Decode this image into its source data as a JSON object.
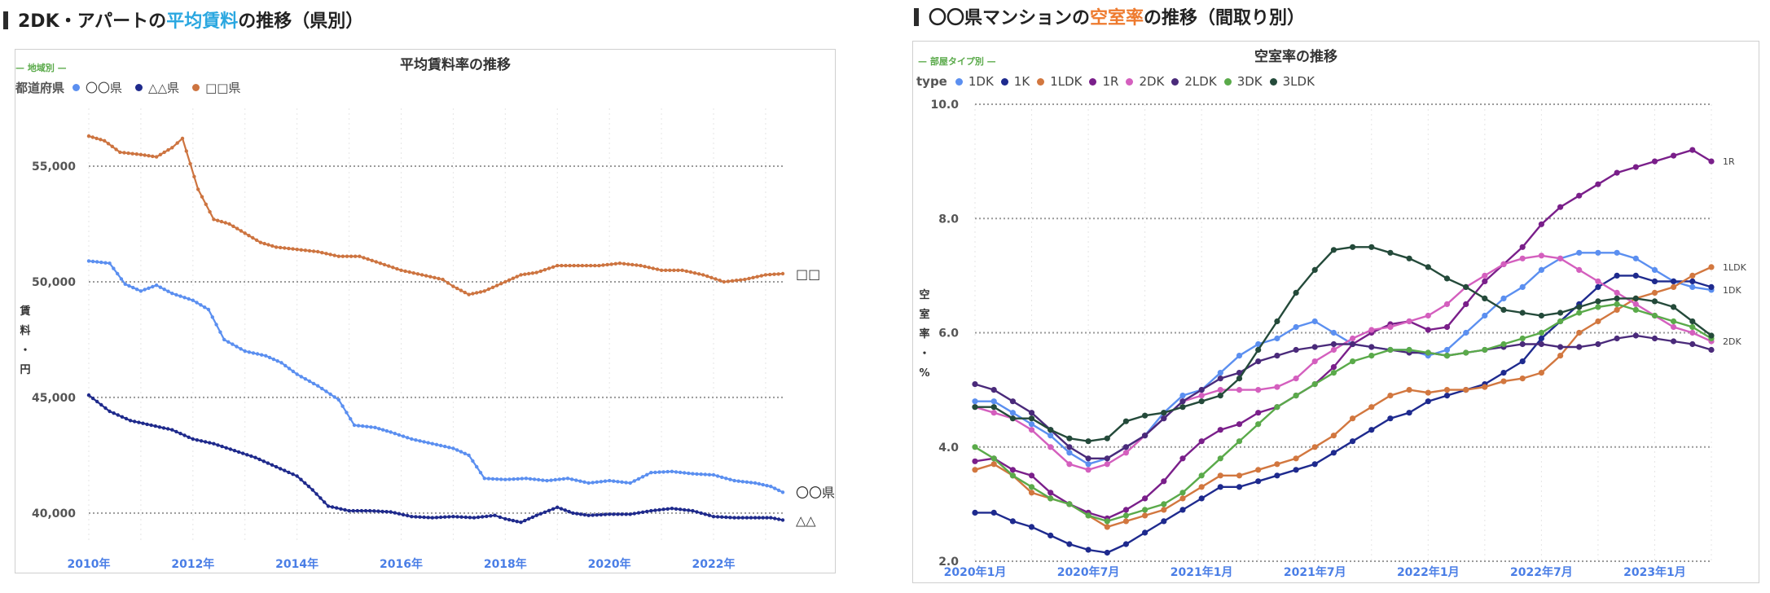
{
  "left_section": {
    "title_pre": "2DK・アパートの",
    "title_hl": "平均賃料",
    "title_post": "の推移（県別）"
  },
  "right_section": {
    "title_pre": "〇〇県マンションの",
    "title_hl": "空室率",
    "title_post": "の推移（間取り別）"
  },
  "colors": {
    "blue_light": "#5b8ff0",
    "navy": "#1f2a8c",
    "orange": "#cd7440",
    "k1": "#1e2a8e",
    "ldk1": "#d2773f",
    "r1": "#7a1f8a",
    "dk2": "#d45fbe",
    "ldk2": "#4a2a7a",
    "dk3": "#5aaa4a",
    "ldk3": "#244a3a"
  },
  "chart_data": [
    {
      "type": "line",
      "title": "平均賃料率の推移",
      "legend_tag": "— 地域別 —",
      "legend_title": "都道府県",
      "ylabel_chars": [
        "賃",
        "料",
        "・",
        "円"
      ],
      "xlabel": "",
      "x_start": 2010.0,
      "x_end": 2023.33,
      "ylim": [
        38200,
        57500
      ],
      "yticks": [
        40000,
        45000,
        50000,
        55000
      ],
      "ytick_labels": [
        "40,000",
        "45,000",
        "50,000",
        "55,000"
      ],
      "xticks": [
        2010,
        2012,
        2014,
        2016,
        2018,
        2020,
        2022
      ],
      "xtick_labels": [
        "2010年",
        "2012年",
        "2014年",
        "2016年",
        "2018年",
        "2020年",
        "2022年"
      ],
      "series": [
        {
          "name": "〇〇県",
          "end_label": "〇〇県",
          "color": "#5b8ff0",
          "points": [
            [
              2010.0,
              50900
            ],
            [
              2010.4,
              50800
            ],
            [
              2010.7,
              49900
            ],
            [
              2011.0,
              49600
            ],
            [
              2011.3,
              49850
            ],
            [
              2011.6,
              49500
            ],
            [
              2012.0,
              49200
            ],
            [
              2012.3,
              48800
            ],
            [
              2012.6,
              47500
            ],
            [
              2013.0,
              47000
            ],
            [
              2013.4,
              46800
            ],
            [
              2013.7,
              46500
            ],
            [
              2014.0,
              46000
            ],
            [
              2014.4,
              45500
            ],
            [
              2014.8,
              44900
            ],
            [
              2015.1,
              43800
            ],
            [
              2015.5,
              43700
            ],
            [
              2015.8,
              43500
            ],
            [
              2016.2,
              43200
            ],
            [
              2016.6,
              43000
            ],
            [
              2017.0,
              42800
            ],
            [
              2017.3,
              42500
            ],
            [
              2017.6,
              41500
            ],
            [
              2018.0,
              41450
            ],
            [
              2018.4,
              41500
            ],
            [
              2018.8,
              41400
            ],
            [
              2019.2,
              41500
            ],
            [
              2019.6,
              41300
            ],
            [
              2020.0,
              41400
            ],
            [
              2020.4,
              41300
            ],
            [
              2020.8,
              41750
            ],
            [
              2021.2,
              41800
            ],
            [
              2021.6,
              41700
            ],
            [
              2022.0,
              41650
            ],
            [
              2022.4,
              41400
            ],
            [
              2022.8,
              41300
            ],
            [
              2023.1,
              41150
            ],
            [
              2023.33,
              40900
            ]
          ]
        },
        {
          "name": "△△県",
          "end_label": "△△",
          "color": "#1f2a8c",
          "points": [
            [
              2010.0,
              45100
            ],
            [
              2010.4,
              44400
            ],
            [
              2010.8,
              44000
            ],
            [
              2011.2,
              43800
            ],
            [
              2011.6,
              43600
            ],
            [
              2012.0,
              43200
            ],
            [
              2012.4,
              43000
            ],
            [
              2012.8,
              42700
            ],
            [
              2013.2,
              42400
            ],
            [
              2013.6,
              42000
            ],
            [
              2014.0,
              41600
            ],
            [
              2014.3,
              41000
            ],
            [
              2014.6,
              40300
            ],
            [
              2015.0,
              40100
            ],
            [
              2015.4,
              40100
            ],
            [
              2015.8,
              40050
            ],
            [
              2016.2,
              39850
            ],
            [
              2016.6,
              39800
            ],
            [
              2017.0,
              39850
            ],
            [
              2017.4,
              39800
            ],
            [
              2017.8,
              39900
            ],
            [
              2018.0,
              39750
            ],
            [
              2018.3,
              39600
            ],
            [
              2018.6,
              39900
            ],
            [
              2019.0,
              40250
            ],
            [
              2019.3,
              40000
            ],
            [
              2019.6,
              39900
            ],
            [
              2020.0,
              39950
            ],
            [
              2020.4,
              39950
            ],
            [
              2020.8,
              40100
            ],
            [
              2021.2,
              40200
            ],
            [
              2021.6,
              40100
            ],
            [
              2022.0,
              39850
            ],
            [
              2022.4,
              39800
            ],
            [
              2022.8,
              39800
            ],
            [
              2023.1,
              39800
            ],
            [
              2023.33,
              39700
            ]
          ]
        },
        {
          "name": "□□県",
          "end_label": "□□",
          "color": "#cd7440",
          "points": [
            [
              2010.0,
              56300
            ],
            [
              2010.3,
              56100
            ],
            [
              2010.6,
              55600
            ],
            [
              2011.0,
              55500
            ],
            [
              2011.3,
              55400
            ],
            [
              2011.6,
              55800
            ],
            [
              2011.8,
              56200
            ],
            [
              2012.1,
              54000
            ],
            [
              2012.4,
              52700
            ],
            [
              2012.7,
              52500
            ],
            [
              2013.0,
              52100
            ],
            [
              2013.3,
              51700
            ],
            [
              2013.6,
              51500
            ],
            [
              2014.0,
              51400
            ],
            [
              2014.4,
              51300
            ],
            [
              2014.8,
              51100
            ],
            [
              2015.2,
              51100
            ],
            [
              2015.6,
              50800
            ],
            [
              2016.0,
              50500
            ],
            [
              2016.4,
              50300
            ],
            [
              2016.8,
              50100
            ],
            [
              2017.0,
              49800
            ],
            [
              2017.3,
              49450
            ],
            [
              2017.6,
              49600
            ],
            [
              2018.0,
              50000
            ],
            [
              2018.3,
              50300
            ],
            [
              2018.6,
              50400
            ],
            [
              2019.0,
              50700
            ],
            [
              2019.4,
              50700
            ],
            [
              2019.8,
              50700
            ],
            [
              2020.2,
              50800
            ],
            [
              2020.6,
              50700
            ],
            [
              2021.0,
              50500
            ],
            [
              2021.4,
              50500
            ],
            [
              2021.8,
              50300
            ],
            [
              2022.2,
              50000
            ],
            [
              2022.6,
              50100
            ],
            [
              2023.0,
              50300
            ],
            [
              2023.33,
              50350
            ]
          ]
        }
      ]
    },
    {
      "type": "line",
      "title": "空室率の推移",
      "legend_tag": "— 部屋タイプ別 —",
      "legend_title": "type",
      "ylabel_chars": [
        "空",
        "室",
        "率",
        "・",
        "%"
      ],
      "xlabel": "",
      "ylim": [
        2.0,
        10.0
      ],
      "yticks": [
        2.0,
        4.0,
        6.0,
        8.0,
        10.0
      ],
      "ytick_labels": [
        "2.0",
        "4.0",
        "6.0",
        "8.0",
        "10.0"
      ],
      "x_count": 40,
      "xticks": [
        0,
        6,
        12,
        18,
        24,
        30,
        36
      ],
      "xtick_labels": [
        "2020年1月",
        "2020年7月",
        "2021年1月",
        "2021年7月",
        "2022年1月",
        "2022年7月",
        "2023年1月"
      ],
      "series": [
        {
          "name": "1DK",
          "end_label": "1DK",
          "color": "#5b8ff0",
          "values": [
            4.8,
            4.8,
            4.6,
            4.4,
            4.2,
            3.9,
            3.7,
            3.8,
            4.0,
            4.2,
            4.6,
            4.9,
            5.0,
            5.3,
            5.6,
            5.8,
            5.9,
            6.1,
            6.2,
            6.0,
            5.8,
            5.75,
            5.7,
            5.7,
            5.6,
            5.7,
            6.0,
            6.3,
            6.6,
            6.8,
            7.1,
            7.3,
            7.4,
            7.4,
            7.4,
            7.3,
            7.1,
            6.9,
            6.8,
            6.75
          ]
        },
        {
          "name": "1K",
          "end_label": "",
          "color": "#1e2a8e",
          "values": [
            2.85,
            2.85,
            2.7,
            2.6,
            2.45,
            2.3,
            2.2,
            2.15,
            2.3,
            2.5,
            2.7,
            2.9,
            3.1,
            3.3,
            3.3,
            3.4,
            3.5,
            3.6,
            3.7,
            3.9,
            4.1,
            4.3,
            4.5,
            4.6,
            4.8,
            4.9,
            5.0,
            5.1,
            5.3,
            5.5,
            5.9,
            6.2,
            6.5,
            6.8,
            7.0,
            7.0,
            6.9,
            6.9,
            6.9,
            6.8
          ]
        },
        {
          "name": "1LDK",
          "end_label": "1LDK",
          "color": "#d2773f",
          "values": [
            3.6,
            3.7,
            3.5,
            3.2,
            3.1,
            3.0,
            2.8,
            2.6,
            2.7,
            2.8,
            2.9,
            3.1,
            3.3,
            3.5,
            3.5,
            3.6,
            3.7,
            3.8,
            4.0,
            4.2,
            4.5,
            4.7,
            4.9,
            5.0,
            4.95,
            5.0,
            5.0,
            5.05,
            5.15,
            5.2,
            5.3,
            5.6,
            6.0,
            6.2,
            6.4,
            6.6,
            6.7,
            6.8,
            7.0,
            7.15
          ]
        },
        {
          "name": "1R",
          "end_label": "1R",
          "color": "#7a1f8a",
          "values": [
            3.75,
            3.8,
            3.6,
            3.5,
            3.2,
            3.0,
            2.85,
            2.75,
            2.9,
            3.1,
            3.4,
            3.8,
            4.1,
            4.3,
            4.4,
            4.6,
            4.7,
            4.9,
            5.1,
            5.4,
            5.8,
            6.0,
            6.15,
            6.2,
            6.05,
            6.1,
            6.5,
            6.9,
            7.2,
            7.5,
            7.9,
            8.2,
            8.4,
            8.6,
            8.8,
            8.9,
            9.0,
            9.1,
            9.2,
            9.0
          ]
        },
        {
          "name": "2DK",
          "end_label": "2DK",
          "color": "#d45fbe",
          "values": [
            4.7,
            4.6,
            4.5,
            4.3,
            4.0,
            3.7,
            3.6,
            3.7,
            3.9,
            4.2,
            4.5,
            4.8,
            4.9,
            5.0,
            5.0,
            5.0,
            5.05,
            5.2,
            5.5,
            5.7,
            5.9,
            6.05,
            6.1,
            6.2,
            6.3,
            6.5,
            6.8,
            7.0,
            7.2,
            7.3,
            7.35,
            7.3,
            7.1,
            6.9,
            6.7,
            6.5,
            6.3,
            6.1,
            6.0,
            5.85
          ]
        },
        {
          "name": "2LDK",
          "end_label": "",
          "color": "#4a2a7a",
          "values": [
            5.1,
            5.0,
            4.8,
            4.6,
            4.3,
            4.0,
            3.8,
            3.8,
            4.0,
            4.2,
            4.5,
            4.8,
            5.0,
            5.2,
            5.3,
            5.5,
            5.6,
            5.7,
            5.75,
            5.8,
            5.8,
            5.75,
            5.7,
            5.65,
            5.65,
            5.6,
            5.65,
            5.7,
            5.75,
            5.8,
            5.8,
            5.75,
            5.75,
            5.8,
            5.9,
            5.95,
            5.9,
            5.85,
            5.8,
            5.7
          ]
        },
        {
          "name": "3DK",
          "end_label": "",
          "color": "#5aaa4a",
          "values": [
            4.0,
            3.8,
            3.5,
            3.3,
            3.1,
            3.0,
            2.8,
            2.7,
            2.8,
            2.9,
            3.0,
            3.2,
            3.5,
            3.8,
            4.1,
            4.4,
            4.7,
            4.9,
            5.1,
            5.3,
            5.5,
            5.6,
            5.7,
            5.7,
            5.65,
            5.6,
            5.65,
            5.7,
            5.8,
            5.9,
            6.0,
            6.2,
            6.35,
            6.45,
            6.5,
            6.4,
            6.3,
            6.2,
            6.1,
            5.9
          ]
        },
        {
          "name": "3LDK",
          "end_label": "",
          "color": "#244a3a",
          "values": [
            4.7,
            4.7,
            4.5,
            4.5,
            4.3,
            4.15,
            4.1,
            4.15,
            4.45,
            4.55,
            4.6,
            4.7,
            4.8,
            4.9,
            5.2,
            5.7,
            6.2,
            6.7,
            7.1,
            7.45,
            7.5,
            7.5,
            7.4,
            7.3,
            7.15,
            6.95,
            6.8,
            6.6,
            6.4,
            6.35,
            6.3,
            6.35,
            6.45,
            6.55,
            6.6,
            6.6,
            6.55,
            6.45,
            6.2,
            5.95
          ]
        }
      ]
    }
  ]
}
